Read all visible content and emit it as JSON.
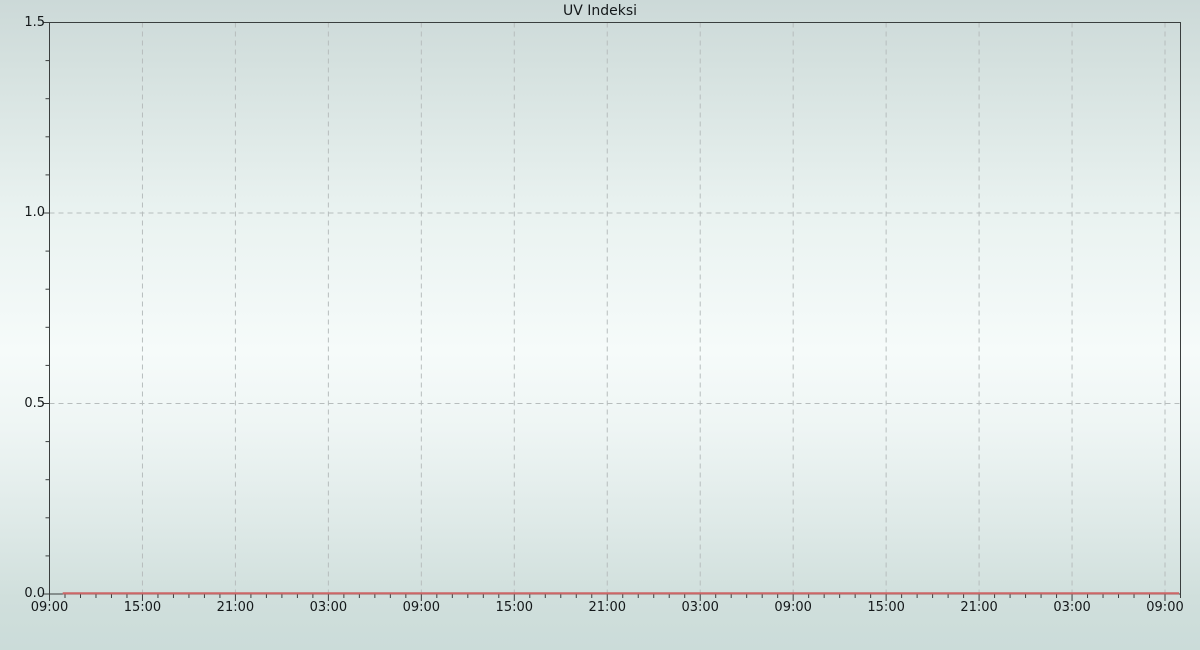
{
  "page": {
    "title": "UV Indeksi"
  },
  "colors": {
    "line": "#cc6666",
    "grid": "#b7bdbd",
    "axis": "#3a3e3e",
    "text": "#14181a",
    "bg_top": "#ccd9d8",
    "bg_upper": "#d5e1df",
    "bg_mid": "#f6fbfa",
    "bg_lower": "#dfeae8",
    "bg_bottom": "#cbdcd9"
  },
  "chart_data": {
    "type": "line",
    "title": "UV Indeksi",
    "xlabel": "",
    "ylabel": "",
    "grid": true,
    "grid_style": "dashed",
    "legend_position": "none",
    "ylim": [
      0,
      1.5
    ],
    "y_tick_values": [
      0,
      0.5,
      1,
      1.5
    ],
    "y_tick_labels": [
      "0.0",
      "0.5",
      "1.0",
      "1.5"
    ],
    "y_minor_step": 0.1,
    "xlim_hours": [
      0,
      73
    ],
    "x_tick_hours": [
      0,
      6,
      12,
      18,
      24,
      30,
      36,
      42,
      48,
      54,
      60,
      66,
      72
    ],
    "x_tick_labels": [
      "09:00",
      "15:00",
      "21:00",
      "03:00",
      "09:00",
      "15:00",
      "21:00",
      "03:00",
      "09:00",
      "15:00",
      "21:00",
      "03:00",
      "09:00"
    ],
    "x_minor_step_hours": 1,
    "series": [
      {
        "name": "UV Indeksi",
        "color": "#cc6666",
        "start_hour": 0.85,
        "end_hour": 72.9,
        "values": [
          0,
          0,
          0,
          0,
          0,
          0,
          0,
          0,
          0,
          0,
          0,
          0,
          0,
          0,
          0,
          0,
          0,
          0,
          0,
          0,
          0,
          0,
          0,
          0,
          0,
          0,
          0,
          0,
          0,
          0,
          0,
          0,
          0,
          0,
          0,
          0,
          0,
          0,
          0,
          0,
          0,
          0,
          0,
          0,
          0,
          0,
          0,
          0,
          0,
          0,
          0,
          0,
          0,
          0,
          0,
          0,
          0,
          0,
          0,
          0,
          0,
          0,
          0,
          0,
          0,
          0,
          0,
          0,
          0,
          0,
          0,
          0,
          0
        ]
      }
    ]
  }
}
